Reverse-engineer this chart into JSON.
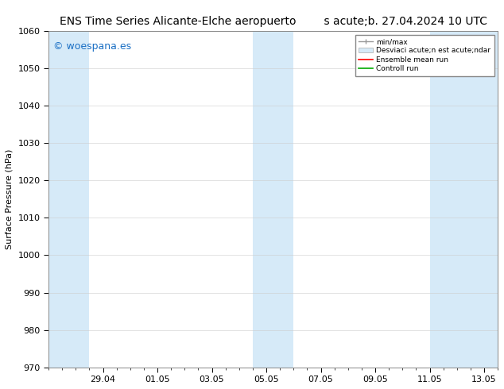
{
  "title_left": "ENS Time Series Alicante-Elche aeropuerto",
  "title_right": "s acute;b. 27.04.2024 10 UTC",
  "ylabel": "Surface Pressure (hPa)",
  "ylim": [
    970,
    1060
  ],
  "yticks": [
    970,
    980,
    990,
    1000,
    1010,
    1020,
    1030,
    1040,
    1050,
    1060
  ],
  "watermark": "© woespana.es",
  "watermark_color": "#1a6fc4",
  "background_color": "#ffffff",
  "shaded_band_color": "#d6eaf8",
  "shaded_band_alpha": 1.0,
  "x_tick_labels": [
    "29.04",
    "01.05",
    "03.05",
    "05.05",
    "07.05",
    "09.05",
    "11.05",
    "13.05"
  ],
  "legend_label_minmax": "min/max",
  "legend_label_std": "Desviaci acute;n est acute;ndar",
  "legend_label_ens": "Ensemble mean run",
  "legend_label_ctrl": "Controll run",
  "legend_color_minmax": "#999999",
  "legend_color_std": "#d6eaf8",
  "legend_color_ens": "#ff0000",
  "legend_color_ctrl": "#00aa00",
  "title_fontsize": 10,
  "axis_fontsize": 8,
  "tick_fontsize": 8,
  "watermark_fontsize": 9,
  "figsize": [
    6.34,
    4.9
  ],
  "dpi": 100
}
